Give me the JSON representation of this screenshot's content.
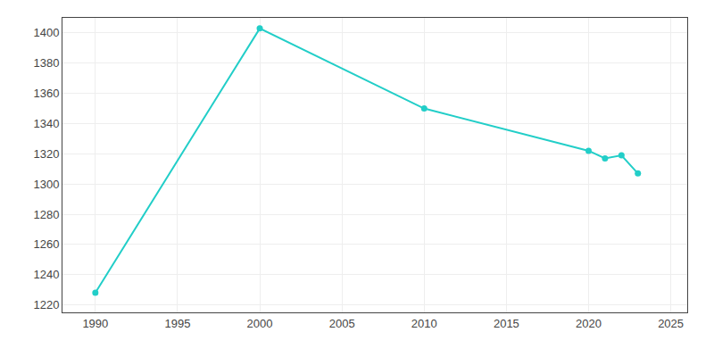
{
  "chart_data": {
    "type": "line",
    "x": [
      1990,
      2000,
      2010,
      2020,
      2021,
      2022,
      2023
    ],
    "values": [
      1228,
      1403,
      1350,
      1322,
      1317,
      1319,
      1307
    ],
    "color": "#22CEC8",
    "marker": "circle",
    "xlim": [
      1988,
      2026
    ],
    "ylim": [
      1215,
      1410
    ],
    "xticks": [
      1990,
      1995,
      2000,
      2005,
      2010,
      2015,
      2020,
      2025
    ],
    "yticks": [
      1220,
      1240,
      1260,
      1280,
      1300,
      1320,
      1340,
      1360,
      1380,
      1400
    ],
    "grid": true
  }
}
